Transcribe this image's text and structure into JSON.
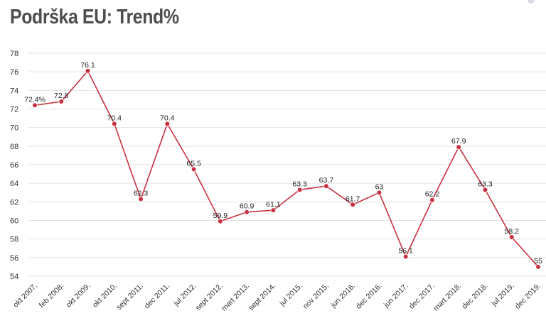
{
  "title": "Podrška EU: Trend%",
  "colors": {
    "line": "#c8303f",
    "point": "#c8303f",
    "grid": "#e3e3e3",
    "title": "#4d4d4d"
  },
  "chart_data": {
    "type": "line",
    "title": "Podrška EU: Trend%",
    "xlabel": "",
    "ylabel": "",
    "ylim": [
      54,
      78
    ],
    "yticks": [
      54,
      56,
      58,
      60,
      62,
      64,
      66,
      68,
      70,
      72,
      74,
      76,
      78
    ],
    "grid": true,
    "legend": "none",
    "categories": [
      "okt 2007.",
      "feb 2008.",
      "okt 2009.",
      "okt 2010.",
      "sept 2011.",
      "dec 2011.",
      "jul 2012.",
      "sept 2012.",
      "mart 2013.",
      "sept 2014.",
      "jul 2015.",
      "nov 2015.",
      "jun 2016.",
      "dec 2016.",
      "jun 2017.",
      "dec 2017.",
      "mart 2018.",
      "dec 2018.",
      "jul 2019.",
      "dec 2019."
    ],
    "values": [
      72.4,
      72.8,
      76.1,
      70.4,
      62.3,
      70.4,
      65.5,
      59.9,
      60.9,
      61.1,
      63.3,
      63.7,
      61.7,
      63,
      56.1,
      62.2,
      67.9,
      63.3,
      58.2,
      55
    ],
    "labels": [
      "72.4%",
      "72.8",
      "76.1",
      "70.4",
      "62.3",
      "70.4",
      "65.5",
      "59.9",
      "60.9",
      "61.1",
      "63.3",
      "63.7",
      "61.7",
      "63",
      "56.1",
      "62.2",
      "67.9",
      "63.3",
      "58.2",
      "55"
    ]
  }
}
